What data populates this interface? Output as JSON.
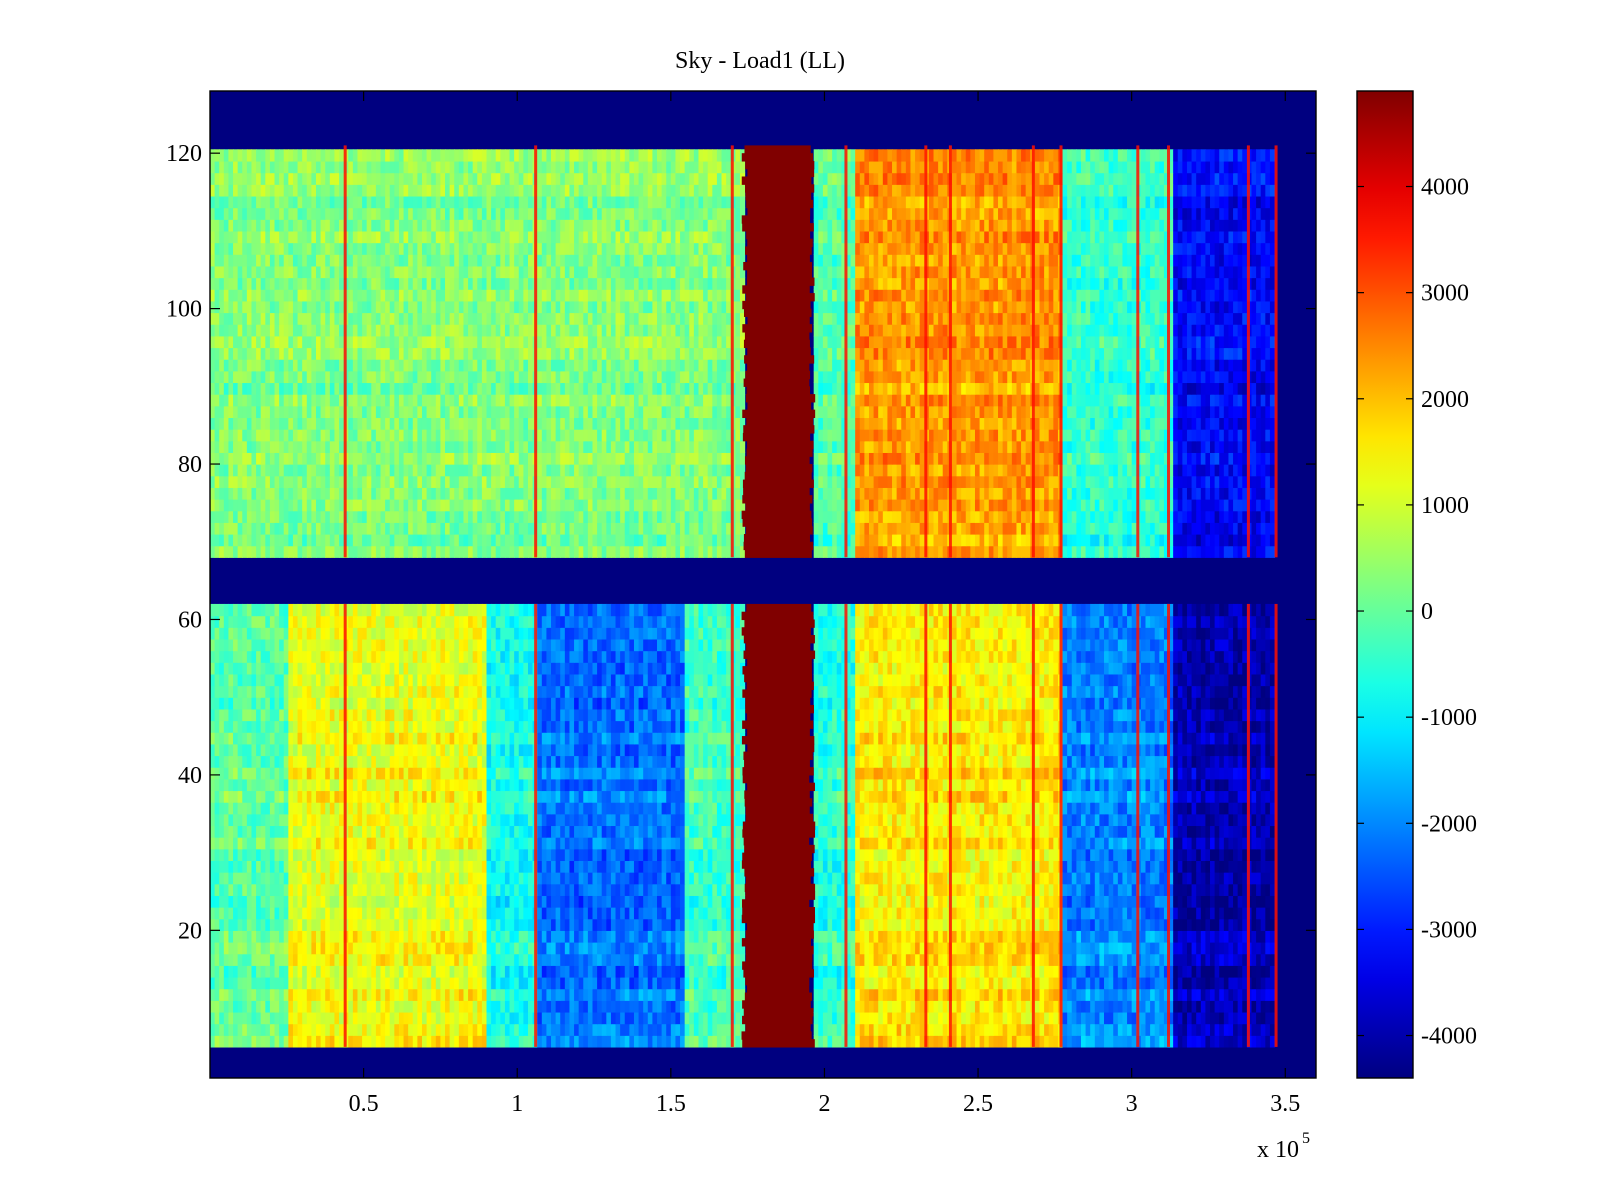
{
  "chart_data": {
    "type": "heatmap",
    "title": "Sky - Load1 (LL)",
    "xlabel": "",
    "ylabel": "",
    "x_multiplier_label": "x 10",
    "x_multiplier_exponent": "5",
    "xlim": [
      0,
      3.6
    ],
    "ylim": [
      1,
      128
    ],
    "x_ticks": [
      0.5,
      1,
      1.5,
      2,
      2.5,
      3,
      3.5
    ],
    "x_tick_labels": [
      "0.5",
      "1",
      "1.5",
      "2",
      "2.5",
      "3",
      "3.5"
    ],
    "y_ticks": [
      20,
      40,
      60,
      80,
      100,
      120
    ],
    "y_tick_labels": [
      "20",
      "40",
      "60",
      "80",
      "100",
      "120"
    ],
    "colormap": "jet",
    "clim": [
      -4400,
      4900
    ],
    "colorbar_ticks": [
      4000,
      3000,
      2000,
      1000,
      0,
      -1000,
      -2000,
      -3000,
      -4000
    ],
    "colorbar_tick_labels": [
      "4000",
      "3000",
      "2000",
      "1000",
      "0",
      "-1000",
      "-2000",
      "-3000",
      "-4000"
    ],
    "masked_value": -4400,
    "masked_row_ranges": [
      [
        1,
        4
      ],
      [
        62,
        67
      ],
      [
        121,
        128
      ]
    ],
    "valid_x_range": [
      0,
      3.47
    ],
    "saturated_band_x": [
      1.74,
      1.96
    ],
    "narrow_spike_lines_x": [
      0.44,
      1.06,
      1.7,
      2.07,
      2.33,
      2.41,
      2.68,
      2.77,
      3.02,
      3.12,
      3.38,
      3.47
    ],
    "regions": [
      {
        "label": "upper-block",
        "rows": [
          68,
          120
        ],
        "x_segments": [
          {
            "x": [
              0.0,
              1.74
            ],
            "value": 250
          },
          {
            "x": [
              1.96,
              2.1
            ],
            "value": -200
          },
          {
            "x": [
              2.1,
              2.78
            ],
            "value": 2300
          },
          {
            "x": [
              2.78,
              3.13
            ],
            "value": -500
          },
          {
            "x": [
              3.13,
              3.47
            ],
            "value": -3300
          }
        ]
      },
      {
        "label": "lower-block",
        "rows": [
          5,
          61
        ],
        "x_segments": [
          {
            "x": [
              0.0,
              0.25
            ],
            "value": 0
          },
          {
            "x": [
              0.25,
              0.9
            ],
            "value": 1300
          },
          {
            "x": [
              0.9,
              1.06
            ],
            "value": -700
          },
          {
            "x": [
              1.06,
              1.55
            ],
            "value": -2200
          },
          {
            "x": [
              1.55,
              1.74
            ],
            "value": -300
          },
          {
            "x": [
              1.96,
              2.1
            ],
            "value": -500
          },
          {
            "x": [
              2.1,
              2.78
            ],
            "value": 1600
          },
          {
            "x": [
              2.78,
              3.13
            ],
            "value": -2000
          },
          {
            "x": [
              3.13,
              3.47
            ],
            "value": -3900
          }
        ]
      }
    ]
  }
}
